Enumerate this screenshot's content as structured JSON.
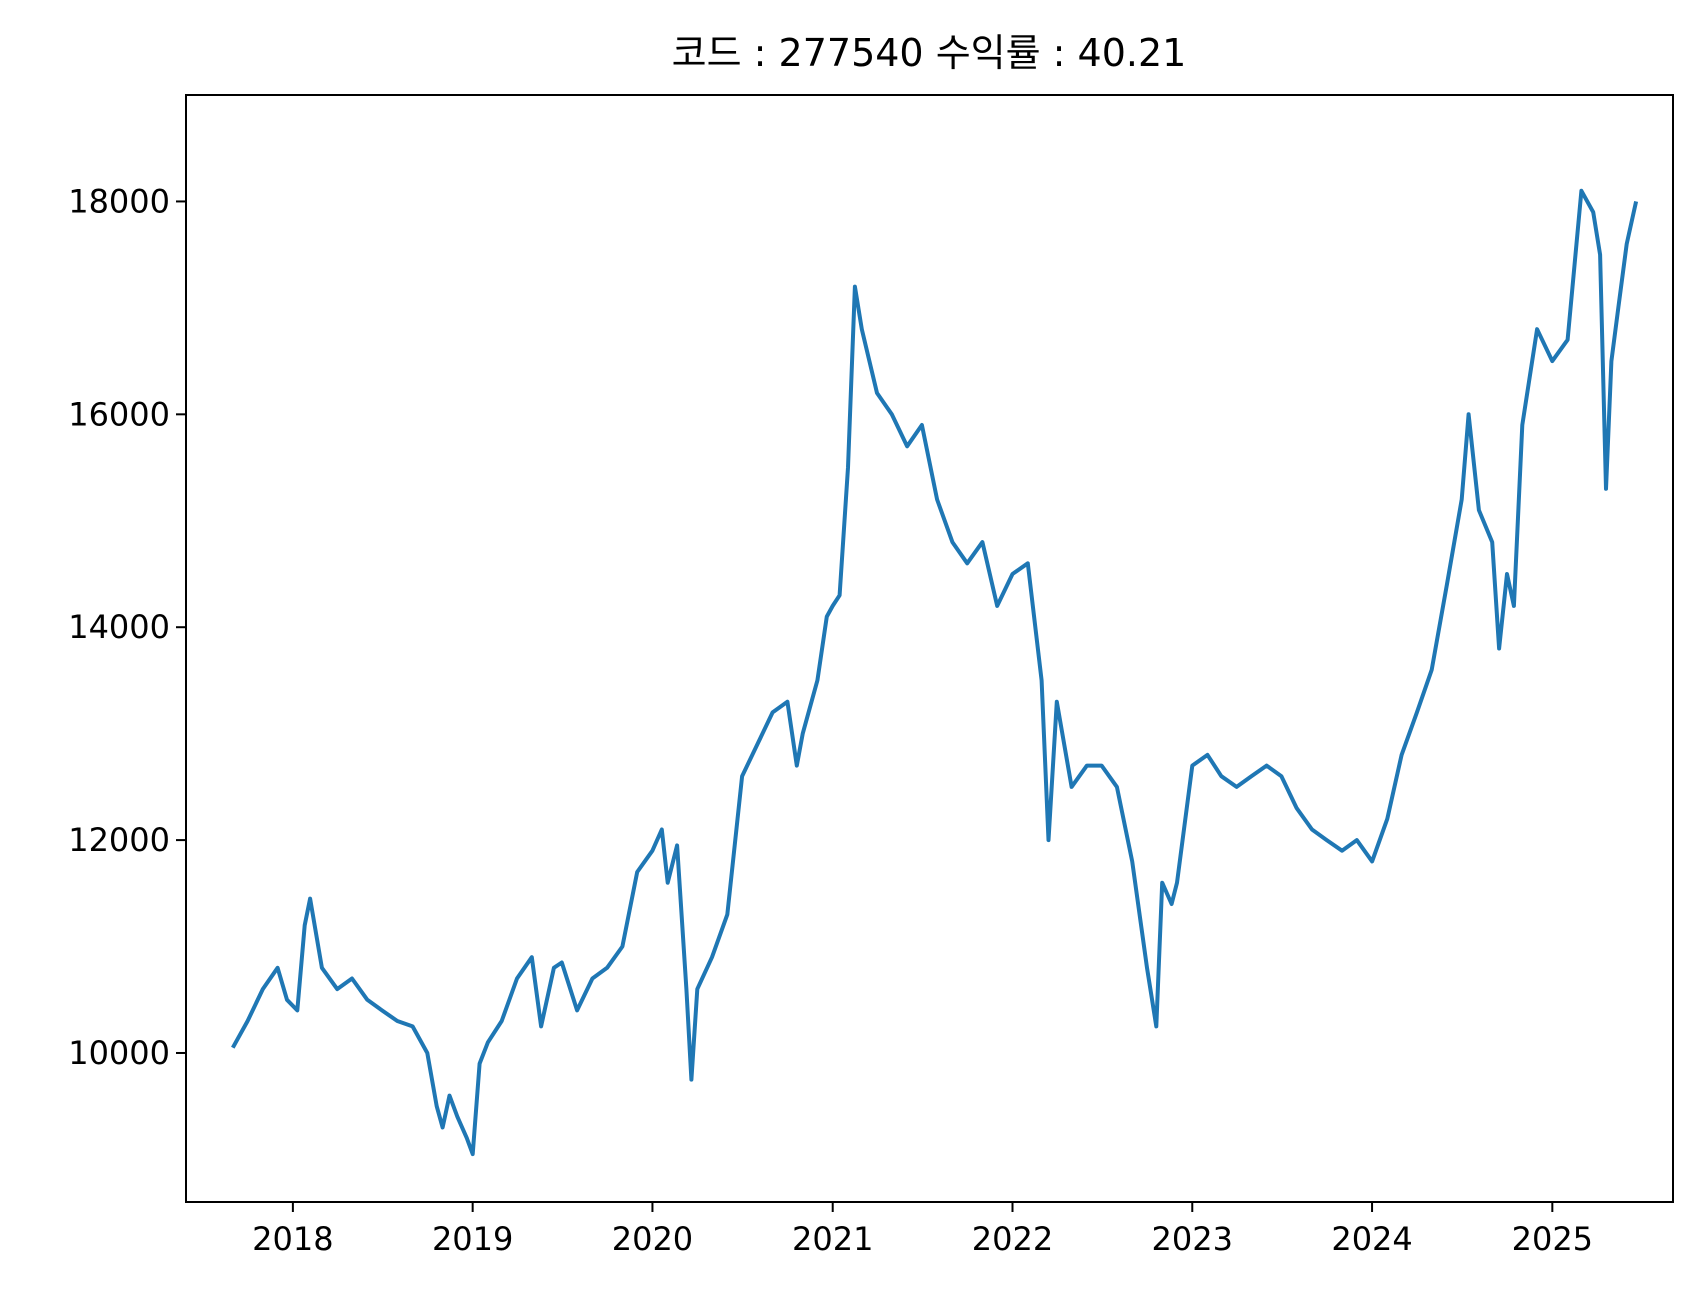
{
  "chart_data": {
    "type": "line",
    "title": "코드 : 277540 수익률 : 40.21",
    "xlabel": "",
    "ylabel": "",
    "grid": false,
    "legend": "none",
    "color": "#1f77b4",
    "xlim": [
      "2017-05-29",
      "2025-09-03"
    ],
    "ylim": [
      8600,
      19000
    ],
    "x_ticks": [
      "2018",
      "2019",
      "2020",
      "2021",
      "2022",
      "2023",
      "2024",
      "2025"
    ],
    "y_ticks": [
      "10000",
      "12000",
      "14000",
      "16000",
      "18000"
    ],
    "series": [
      {
        "x": [
          "2017-09-01",
          "2017-10-01",
          "2017-11-01",
          "2017-12-01",
          "2017-12-20",
          "2018-01-10",
          "2018-01-25",
          "2018-02-05",
          "2018-03-01",
          "2018-04-01",
          "2018-05-01",
          "2018-06-01",
          "2018-07-01",
          "2018-08-01",
          "2018-09-01",
          "2018-10-01",
          "2018-10-20",
          "2018-11-01",
          "2018-11-15",
          "2018-12-01",
          "2018-12-20",
          "2019-01-01",
          "2019-01-15",
          "2019-02-01",
          "2019-03-01",
          "2019-04-01",
          "2019-05-01",
          "2019-05-20",
          "2019-06-15",
          "2019-07-01",
          "2019-08-01",
          "2019-09-01",
          "2019-10-01",
          "2019-11-01",
          "2019-12-01",
          "2020-01-01",
          "2020-01-20",
          "2020-02-01",
          "2020-02-20",
          "2020-03-10",
          "2020-03-20",
          "2020-04-01",
          "2020-05-01",
          "2020-06-01",
          "2020-07-01",
          "2020-08-01",
          "2020-09-01",
          "2020-10-01",
          "2020-10-20",
          "2020-11-01",
          "2020-12-01",
          "2020-12-20",
          "2021-01-01",
          "2021-01-15",
          "2021-02-01",
          "2021-02-15",
          "2021-03-01",
          "2021-04-01",
          "2021-05-01",
          "2021-06-01",
          "2021-07-01",
          "2021-08-01",
          "2021-09-01",
          "2021-10-01",
          "2021-11-01",
          "2021-12-01",
          "2022-01-01",
          "2022-02-01",
          "2022-03-01",
          "2022-03-15",
          "2022-04-01",
          "2022-05-01",
          "2022-06-01",
          "2022-07-01",
          "2022-08-01",
          "2022-09-01",
          "2022-10-01",
          "2022-10-20",
          "2022-11-01",
          "2022-11-20",
          "2022-12-01",
          "2023-01-01",
          "2023-02-01",
          "2023-03-01",
          "2023-04-01",
          "2023-05-01",
          "2023-06-01",
          "2023-07-01",
          "2023-08-01",
          "2023-09-01",
          "2023-10-01",
          "2023-11-01",
          "2023-12-01",
          "2024-01-01",
          "2024-02-01",
          "2024-03-01",
          "2024-04-01",
          "2024-05-01",
          "2024-06-01",
          "2024-07-01",
          "2024-07-15",
          "2024-08-05",
          "2024-09-01",
          "2024-09-15",
          "2024-10-01",
          "2024-10-15",
          "2024-11-01",
          "2024-12-01",
          "2025-01-01",
          "2025-02-01",
          "2025-03-01",
          "2025-03-25",
          "2025-04-08",
          "2025-04-20",
          "2025-05-01",
          "2025-05-15",
          "2025-06-01",
          "2025-06-20"
        ],
        "y": [
          10050,
          10300,
          10600,
          10800,
          10500,
          10400,
          11200,
          11450,
          10800,
          10600,
          10700,
          10500,
          10400,
          10300,
          10250,
          10000,
          9500,
          9300,
          9600,
          9400,
          9200,
          9050,
          9900,
          10100,
          10300,
          10700,
          10900,
          10250,
          10800,
          10850,
          10400,
          10700,
          10800,
          11000,
          11700,
          11900,
          12100,
          11600,
          11950,
          10600,
          9750,
          10600,
          10900,
          11300,
          12600,
          12900,
          13200,
          13300,
          12700,
          13000,
          13500,
          14100,
          14200,
          14300,
          15500,
          17200,
          16800,
          16200,
          16000,
          15700,
          15900,
          15200,
          14800,
          14600,
          14800,
          14200,
          14500,
          14600,
          13500,
          12000,
          13300,
          12500,
          12700,
          12700,
          12500,
          11800,
          10800,
          10250,
          11600,
          11400,
          11600,
          12700,
          12800,
          12600,
          12500,
          12600,
          12700,
          12600,
          12300,
          12100,
          12000,
          11900,
          12000,
          11800,
          12200,
          12800,
          13200,
          13600,
          14400,
          15200,
          16000,
          15100,
          14800,
          13800,
          14500,
          14200,
          15900,
          16800,
          16500,
          16700,
          18100,
          17900,
          17500,
          15300,
          16500,
          17000,
          17600,
          18000
        ]
      }
    ]
  }
}
